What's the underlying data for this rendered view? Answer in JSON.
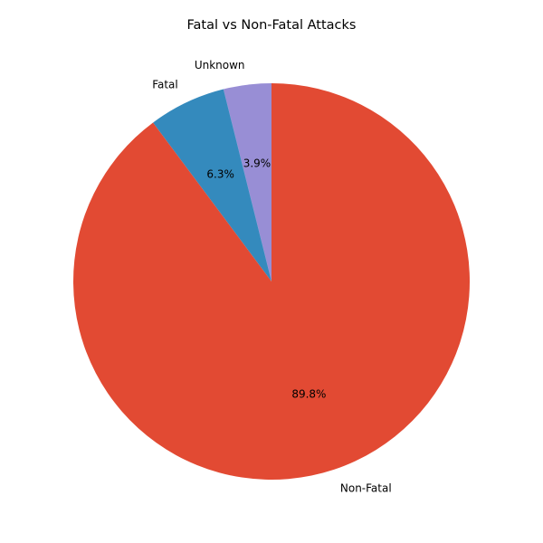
{
  "chart_data": {
    "type": "pie",
    "title": "Fatal vs Non-Fatal Attacks",
    "slices": [
      {
        "label": "Non-Fatal",
        "value": 89.8,
        "pct_label": "89.8%",
        "color": "#E24A33"
      },
      {
        "label": "Fatal",
        "value": 6.3,
        "pct_label": "6.3%",
        "color": "#348ABD"
      },
      {
        "label": "Unknown",
        "value": 3.9,
        "pct_label": "3.9%",
        "color": "#988ED5"
      }
    ],
    "start_angle": "90 (top)",
    "direction": "counterclockwise",
    "legend": "none",
    "grid": false
  }
}
